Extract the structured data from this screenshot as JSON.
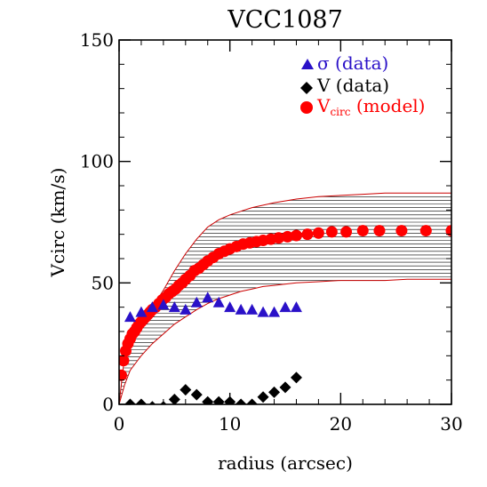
{
  "chart_data": {
    "type": "scatter",
    "title": "VCC1087",
    "xlabel": "radius (arcsec)",
    "ylabel": "Vcirc (km/s)",
    "xlim": [
      0,
      30
    ],
    "ylim": [
      0,
      150
    ],
    "x_ticks": [
      0,
      10,
      20,
      30
    ],
    "y_ticks": [
      0,
      50,
      100,
      150
    ],
    "x_tick_labels": [
      "0",
      "10",
      "20",
      "30"
    ],
    "y_tick_labels": [
      "0",
      "50",
      "100",
      "150"
    ],
    "legend_position": "top-right",
    "series": [
      {
        "name": "σ (data)",
        "marker": "triangle",
        "color": "#2a11c8",
        "x": [
          1,
          2,
          3,
          4,
          5,
          6,
          7,
          8,
          9,
          10,
          11,
          12,
          13,
          14,
          15,
          16
        ],
        "y": [
          36,
          38,
          40,
          41,
          40,
          39,
          42,
          44,
          42,
          40,
          39,
          39,
          38,
          38,
          40,
          40
        ]
      },
      {
        "name": "V (data)",
        "marker": "diamond",
        "color": "#000000",
        "x": [
          1,
          2,
          3,
          4,
          5,
          6,
          7,
          8,
          9,
          10,
          11,
          12,
          13,
          14,
          15,
          16
        ],
        "y": [
          0,
          0,
          -1,
          -1,
          2,
          6,
          4,
          1,
          1,
          1,
          0,
          0,
          3,
          5,
          7,
          11
        ]
      },
      {
        "name": "V",
        "name_subscript": "circ",
        "name_suffix": " (model)",
        "marker": "circle",
        "color": "#ff0000",
        "x": [
          0.2,
          0.4,
          0.6,
          0.8,
          1.0,
          1.2,
          1.4,
          1.6,
          1.8,
          2.0,
          2.2,
          2.4,
          2.6,
          2.8,
          3.0,
          3.3,
          3.6,
          3.9,
          4.2,
          4.5,
          4.8,
          5.1,
          5.4,
          5.7,
          6.0,
          6.4,
          6.8,
          7.2,
          7.6,
          8.0,
          8.5,
          9.0,
          9.5,
          10.0,
          10.6,
          11.2,
          11.8,
          12.4,
          13.0,
          13.7,
          14.4,
          15.2,
          16.0,
          17.0,
          18.0,
          19.2,
          20.5,
          22.0,
          23.5,
          25.5,
          27.7,
          30.0
        ],
        "y": [
          12,
          18,
          22,
          25,
          27,
          29,
          30,
          31.5,
          33,
          34,
          35,
          36,
          37,
          38,
          39,
          40,
          41.5,
          43,
          44,
          45.5,
          46.5,
          47.5,
          49,
          50,
          51.5,
          53,
          55,
          56,
          57.5,
          59,
          60.5,
          62,
          63,
          64,
          65,
          66,
          66.5,
          67,
          67.5,
          68,
          68.5,
          69,
          69.5,
          70,
          70.5,
          71,
          71,
          71.5,
          71.5,
          71.5,
          71.5,
          71.5
        ]
      }
    ],
    "band": {
      "x": [
        0,
        0.5,
        1,
        1.5,
        2,
        3,
        4,
        5,
        6,
        7,
        8,
        9,
        10,
        11,
        12,
        13,
        14,
        16,
        18,
        20,
        22,
        24,
        26,
        28,
        30
      ],
      "upper": [
        0,
        20,
        27,
        30,
        33,
        40,
        47,
        55,
        62,
        68,
        73,
        76,
        78,
        79.5,
        81,
        82,
        83,
        84.5,
        85.5,
        86,
        86.5,
        87,
        87,
        87,
        87
      ],
      "lower": [
        0,
        8,
        14,
        17,
        20,
        25,
        29,
        33,
        36,
        39,
        41.5,
        43.5,
        45,
        46.5,
        47.5,
        48.5,
        49,
        50,
        50.5,
        51,
        51,
        51,
        51.5,
        51.5,
        51.5
      ],
      "color": "#cc0000"
    }
  }
}
